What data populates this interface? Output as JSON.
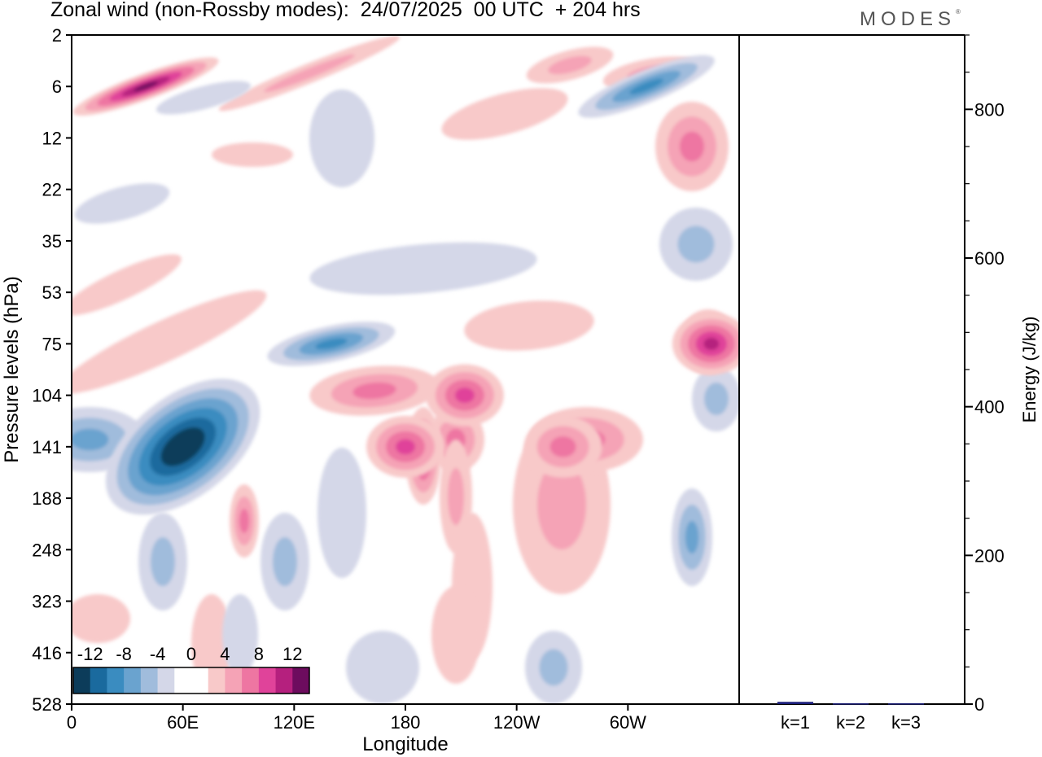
{
  "title": "Zonal wind (non-Rossby modes):  24/07/2025  00 UTC  + 204 hrs",
  "logo": "MODES",
  "logo_mark": "®",
  "colors": {
    "scale": [
      "#0c3c5a",
      "#1a6a9e",
      "#3a8cc0",
      "#6aa3cf",
      "#a0bcdc",
      "#d4d7e8",
      "#ffffff",
      "#ffffff",
      "#f8c9c9",
      "#f5a3b6",
      "#ee76a2",
      "#e0439a",
      "#b5207e",
      "#6d0c5e"
    ],
    "frame": "#000000",
    "bar": "#1b1e7a"
  },
  "chart_data": [
    {
      "type": "heatmap",
      "title": "Zonal wind (non-Rossby modes):  24/07/2025  00 UTC  + 204 hrs",
      "xlabel": "Longitude",
      "ylabel": "Pressure levels (hPa)",
      "x_ticks": [
        "0",
        "60E",
        "120E",
        "180",
        "120W",
        "60W"
      ],
      "y_ticks": [
        "2",
        "6",
        "12",
        "22",
        "35",
        "53",
        "75",
        "104",
        "141",
        "188",
        "248",
        "323",
        "416",
        "528"
      ],
      "colorbar_ticks": [
        "-12",
        "-8",
        "-4",
        "0",
        "4",
        "8",
        "12"
      ],
      "colorbar_range": [
        -14,
        14
      ],
      "features": [
        {
          "name": "easterly core",
          "lon": 60,
          "level": 141,
          "value": -14
        },
        {
          "name": "easterly band",
          "lon": 140,
          "level": 75,
          "value": -8
        },
        {
          "name": "westerly maximum",
          "lon": 180,
          "level": 141,
          "value": 9
        },
        {
          "name": "westerly maximum",
          "lon": 212,
          "level": 104,
          "value": 8
        },
        {
          "name": "westerly maximum",
          "lon": 265,
          "level": 141,
          "value": 7
        },
        {
          "name": "westerly maximum",
          "lon": 345,
          "level": 75,
          "value": 10
        },
        {
          "name": "westerly jet aloft",
          "lon": 40,
          "level": 6,
          "value": 12
        },
        {
          "name": "easterly aloft",
          "lon": 310,
          "level": 6,
          "value": -9
        }
      ]
    },
    {
      "type": "bar",
      "categories": [
        "k=1",
        "k=2",
        "k=3"
      ],
      "values": [
        3,
        1,
        1
      ],
      "ylabel": "Energy (J/kg)",
      "ylim": [
        0,
        900
      ],
      "y_ticks": [
        0,
        200,
        400,
        600,
        800
      ]
    }
  ]
}
